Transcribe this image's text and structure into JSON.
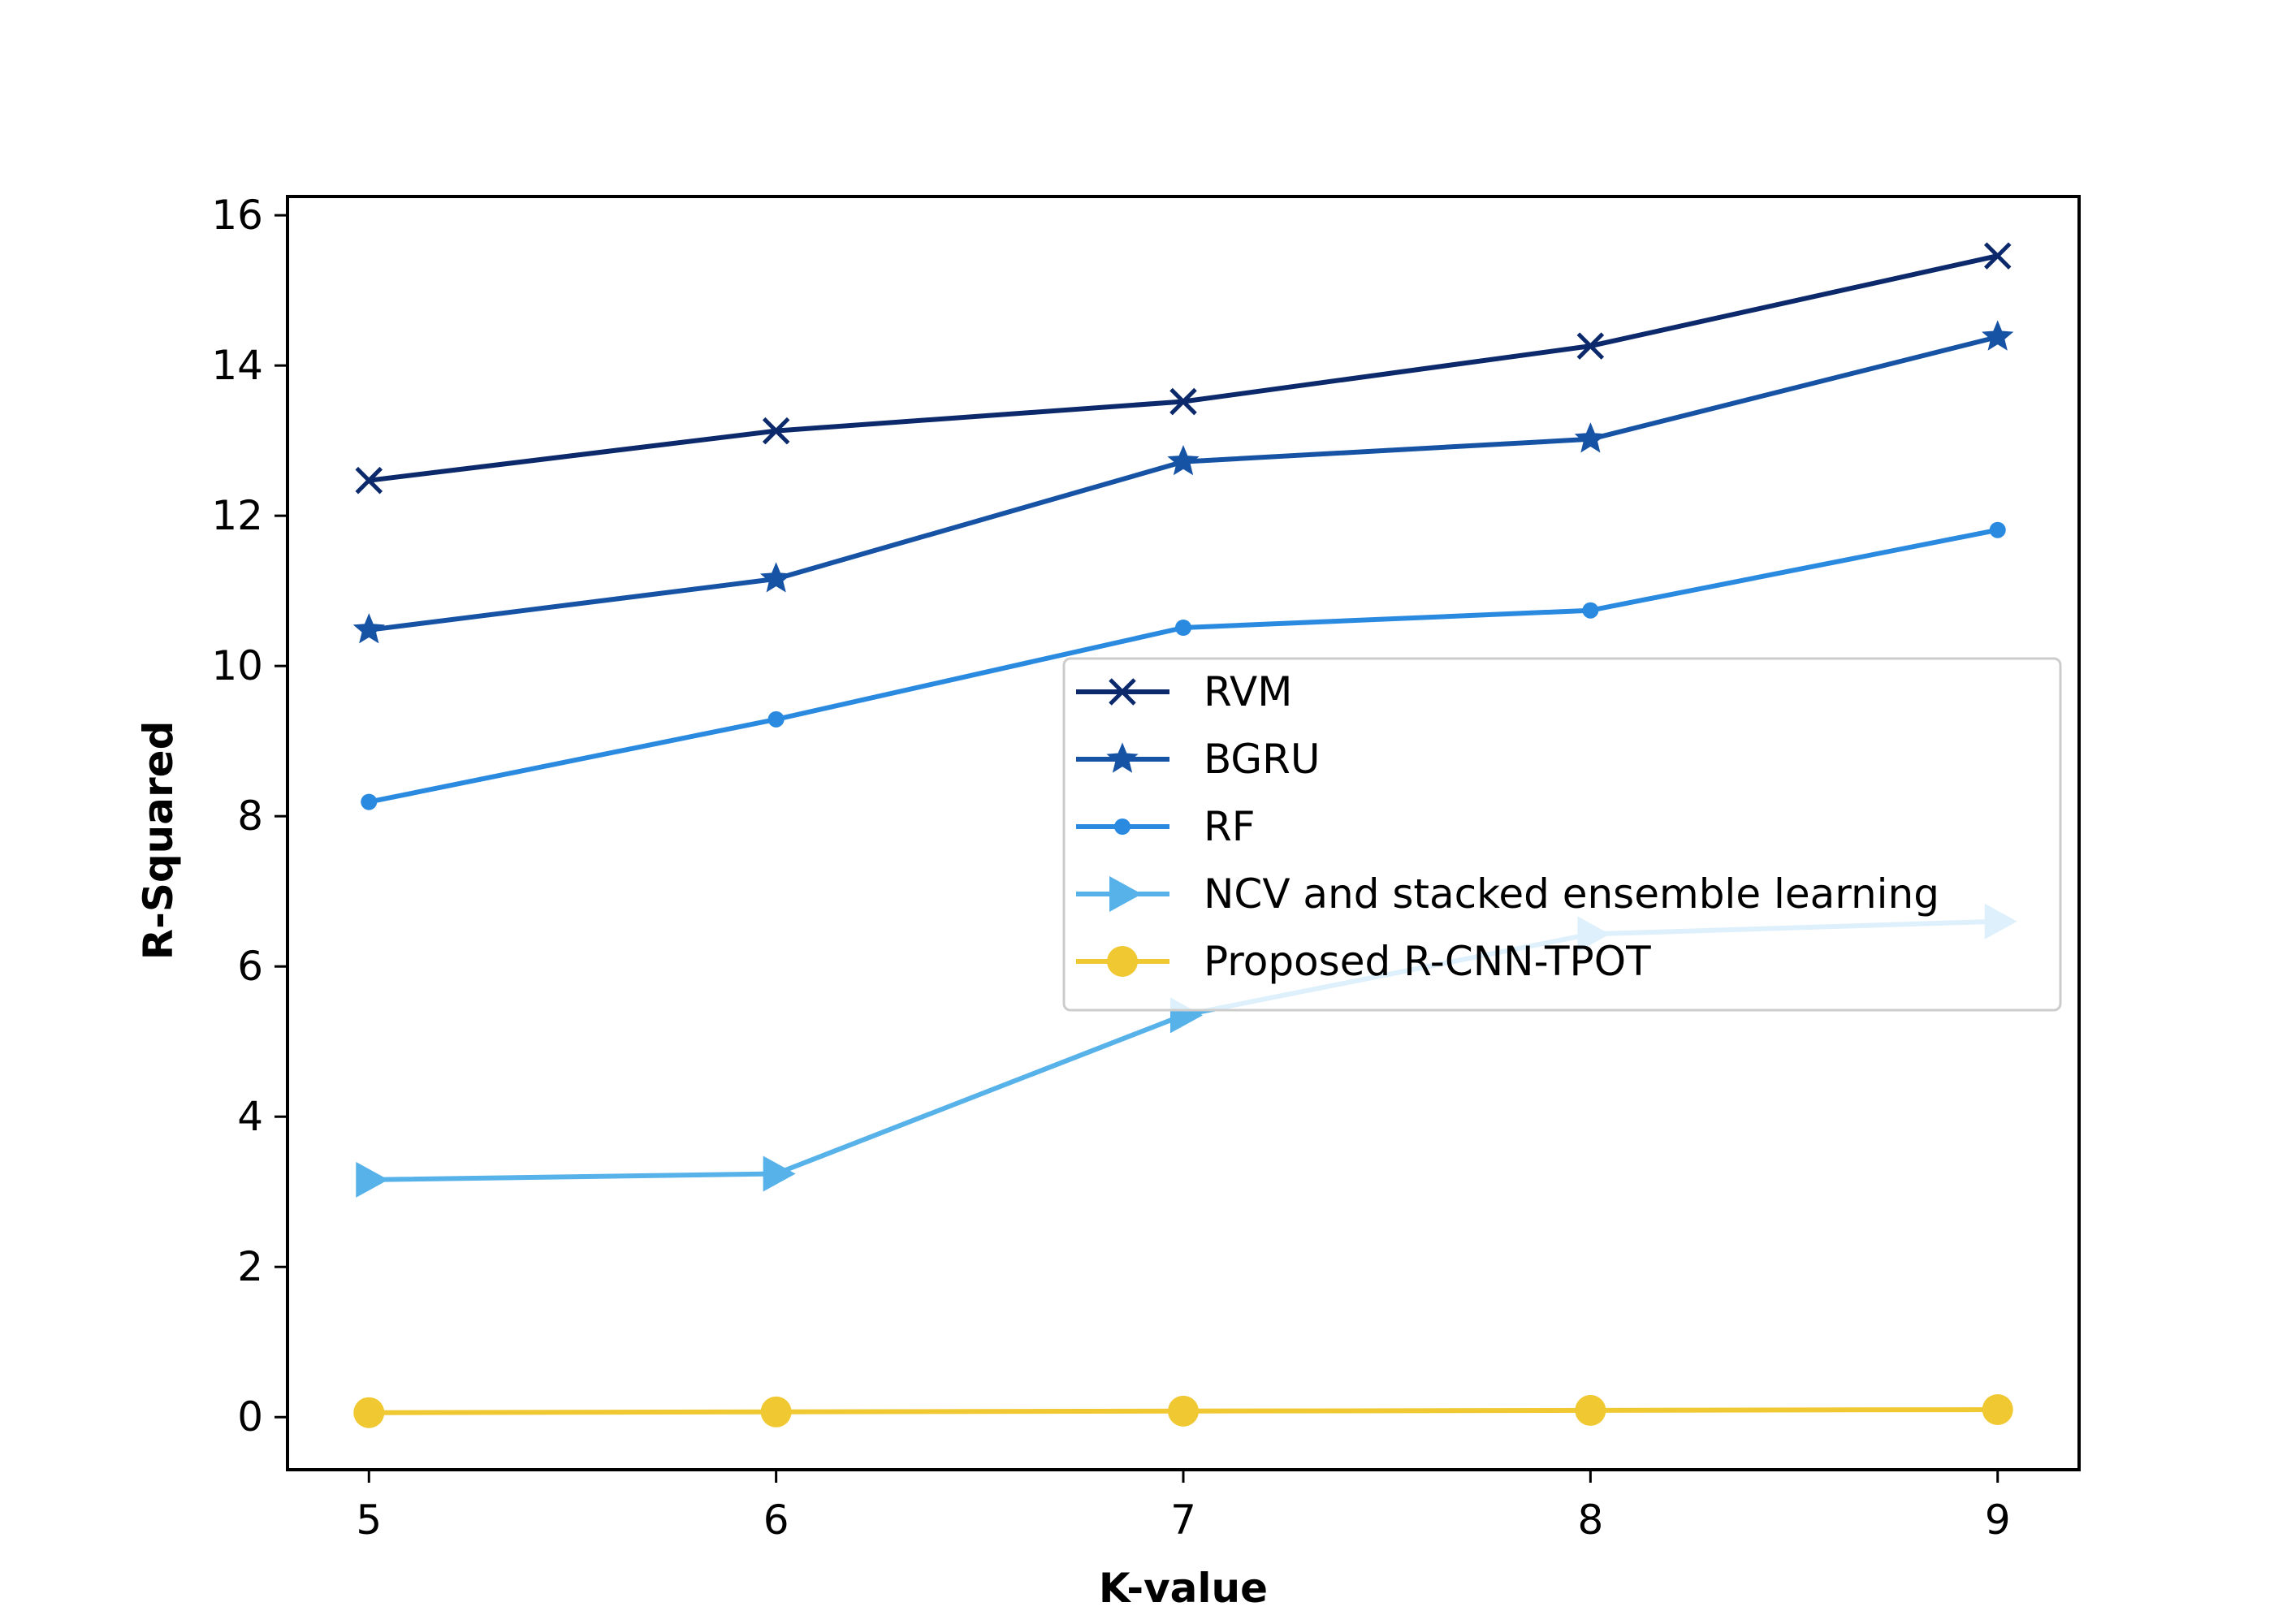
{
  "chart_data": {
    "type": "line",
    "title": "",
    "xlabel": "K-value",
    "ylabel": "R-Squared",
    "x": [
      5,
      6,
      7,
      8,
      9
    ],
    "xlim": [
      4.8,
      9.2
    ],
    "ylim": [
      -0.7,
      16.25
    ],
    "xticks": [
      "5",
      "6",
      "7",
      "8",
      "9"
    ],
    "yticks": [
      "0",
      "2",
      "4",
      "6",
      "8",
      "10",
      "12",
      "14",
      "16"
    ],
    "grid": false,
    "legend_position": "center-right",
    "series": [
      {
        "name": "RVM",
        "values": [
          12.47,
          13.13,
          13.52,
          14.26,
          15.46
        ],
        "color": "#0c2a6b",
        "marker": "x"
      },
      {
        "name": "BGRU",
        "values": [
          10.48,
          11.16,
          12.72,
          13.02,
          14.38
        ],
        "color": "#1753a5",
        "marker": "star"
      },
      {
        "name": "RF",
        "values": [
          8.19,
          9.29,
          10.51,
          10.74,
          11.81
        ],
        "color": "#2a8ae0",
        "marker": "point"
      },
      {
        "name": "NCV and stacked ensemble learning",
        "values": [
          3.16,
          3.24,
          5.35,
          6.43,
          6.6
        ],
        "color": "#58b2ea",
        "marker": "triangle-right"
      },
      {
        "name": "Proposed R-CNN-TPOT",
        "values": [
          0.06,
          0.07,
          0.08,
          0.09,
          0.1
        ],
        "color": "#f0c832",
        "marker": "circle"
      }
    ]
  }
}
